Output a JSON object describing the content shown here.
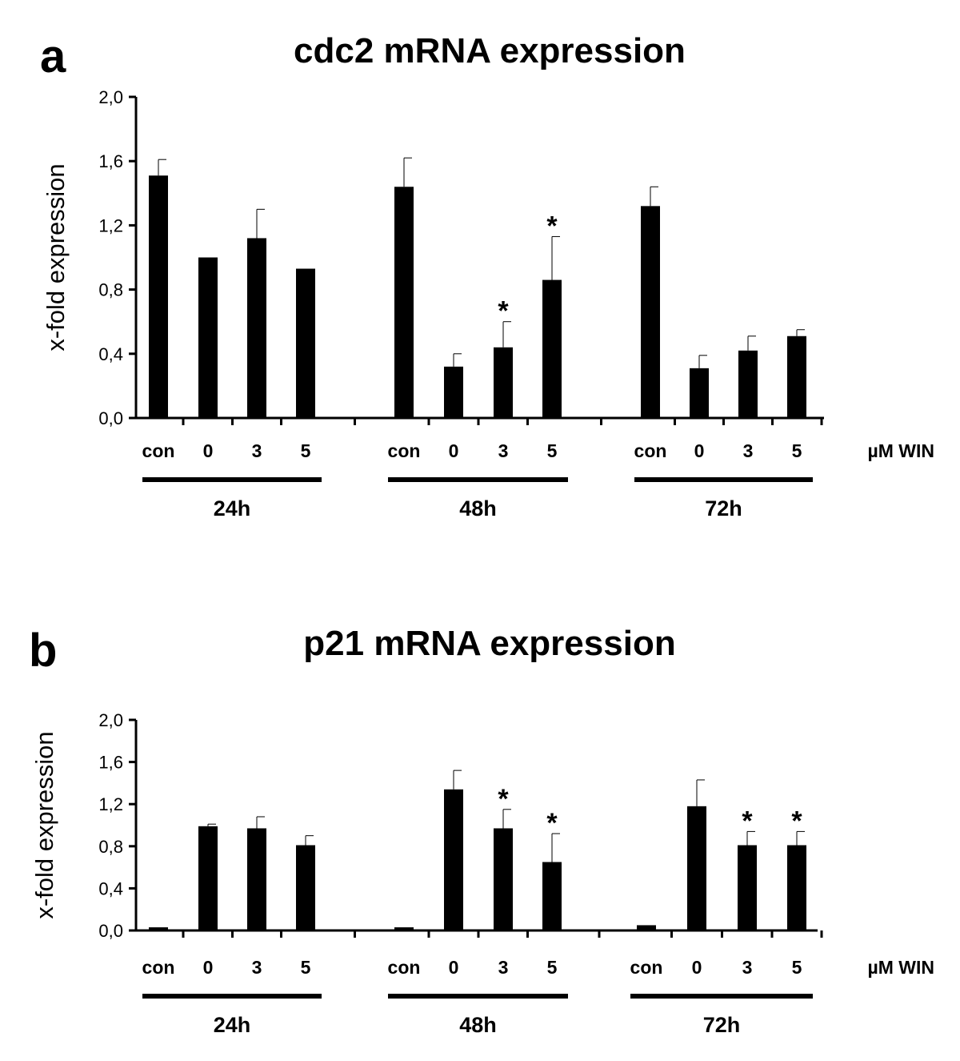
{
  "chart_data": [
    {
      "panel": "a",
      "type": "bar",
      "title": "cdc2 mRNA expression",
      "ylabel": "x-fold expression",
      "ylim": [
        0,
        2.0
      ],
      "yticks": [
        "0,0",
        "0,4",
        "0,8",
        "1,2",
        "1,6",
        "2,0"
      ],
      "unit_label": "µM WIN",
      "groups": [
        {
          "label": "24h",
          "categories": [
            "con",
            "0",
            "3",
            "5"
          ],
          "values": [
            1.51,
            1.0,
            1.12,
            0.93
          ],
          "errors": [
            0.1,
            0,
            0.18,
            0
          ],
          "significant": [
            false,
            false,
            false,
            false
          ]
        },
        {
          "label": "48h",
          "categories": [
            "con",
            "0",
            "3",
            "5"
          ],
          "values": [
            1.44,
            0.32,
            0.44,
            0.86
          ],
          "errors": [
            0.18,
            0.08,
            0.16,
            0.27
          ],
          "significant": [
            false,
            false,
            true,
            true
          ]
        },
        {
          "label": "72h",
          "categories": [
            "con",
            "0",
            "3",
            "5"
          ],
          "values": [
            1.32,
            0.31,
            0.42,
            0.51
          ],
          "errors": [
            0.12,
            0.08,
            0.09,
            0.04
          ],
          "significant": [
            false,
            false,
            false,
            false
          ]
        }
      ],
      "significance_marker": "*",
      "grid": false,
      "legend": "none"
    },
    {
      "panel": "b",
      "type": "bar",
      "title": "p21 mRNA expression",
      "ylabel": "x-fold expression",
      "ylim": [
        0,
        2.0
      ],
      "yticks": [
        "0,0",
        "0,4",
        "0,8",
        "1,2",
        "1,6",
        "2,0"
      ],
      "unit_label": "µM WIN",
      "groups": [
        {
          "label": "24h",
          "categories": [
            "con",
            "0",
            "3",
            "5"
          ],
          "values": [
            0.03,
            0.99,
            0.97,
            0.81
          ],
          "errors": [
            0,
            0.02,
            0.11,
            0.09
          ],
          "significant": [
            false,
            false,
            false,
            false
          ]
        },
        {
          "label": "48h",
          "categories": [
            "con",
            "0",
            "3",
            "5"
          ],
          "values": [
            0.03,
            1.34,
            0.97,
            0.65
          ],
          "errors": [
            0,
            0.18,
            0.18,
            0.27
          ],
          "significant": [
            false,
            false,
            true,
            true
          ]
        },
        {
          "label": "72h",
          "categories": [
            "con",
            "0",
            "3",
            "5"
          ],
          "values": [
            0.05,
            1.18,
            0.81,
            0.81
          ],
          "errors": [
            0,
            0.25,
            0.13,
            0.13
          ],
          "significant": [
            false,
            false,
            true,
            true
          ]
        }
      ],
      "significance_marker": "*",
      "grid": false,
      "legend": "none"
    }
  ]
}
